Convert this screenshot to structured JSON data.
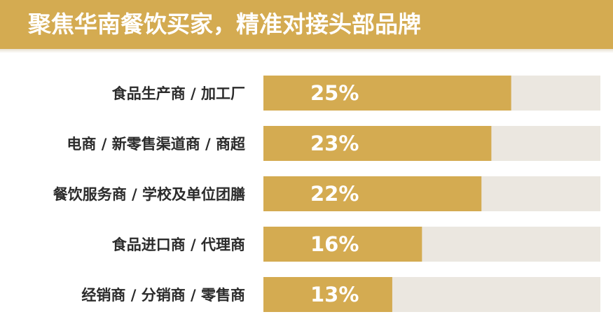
{
  "header": {
    "title": "聚焦华南餐饮买家，精准对接头部品牌"
  },
  "colors": {
    "accent": "#d4ab51",
    "track": "#ebe7e0",
    "label": "#2b2b2b",
    "value_text": "#ffffff"
  },
  "chart_data": {
    "type": "bar",
    "orientation": "horizontal",
    "title": "聚焦华南餐饮买家，精准对接头部品牌",
    "categories": [
      "食品生产商 / 加工厂",
      "电商 / 新零售渠道商 / 商超",
      "餐饮服务商 / 学校及单位团膳",
      "食品进口商 / 代理商",
      "经销商 / 分销商 / 零售商"
    ],
    "values": [
      25,
      23,
      22,
      16,
      13
    ],
    "value_labels": [
      "25%",
      "23%",
      "22%",
      "16%",
      "13%"
    ],
    "unit": "%",
    "xlim": [
      0,
      34
    ],
    "grid": false,
    "legend": "none"
  }
}
